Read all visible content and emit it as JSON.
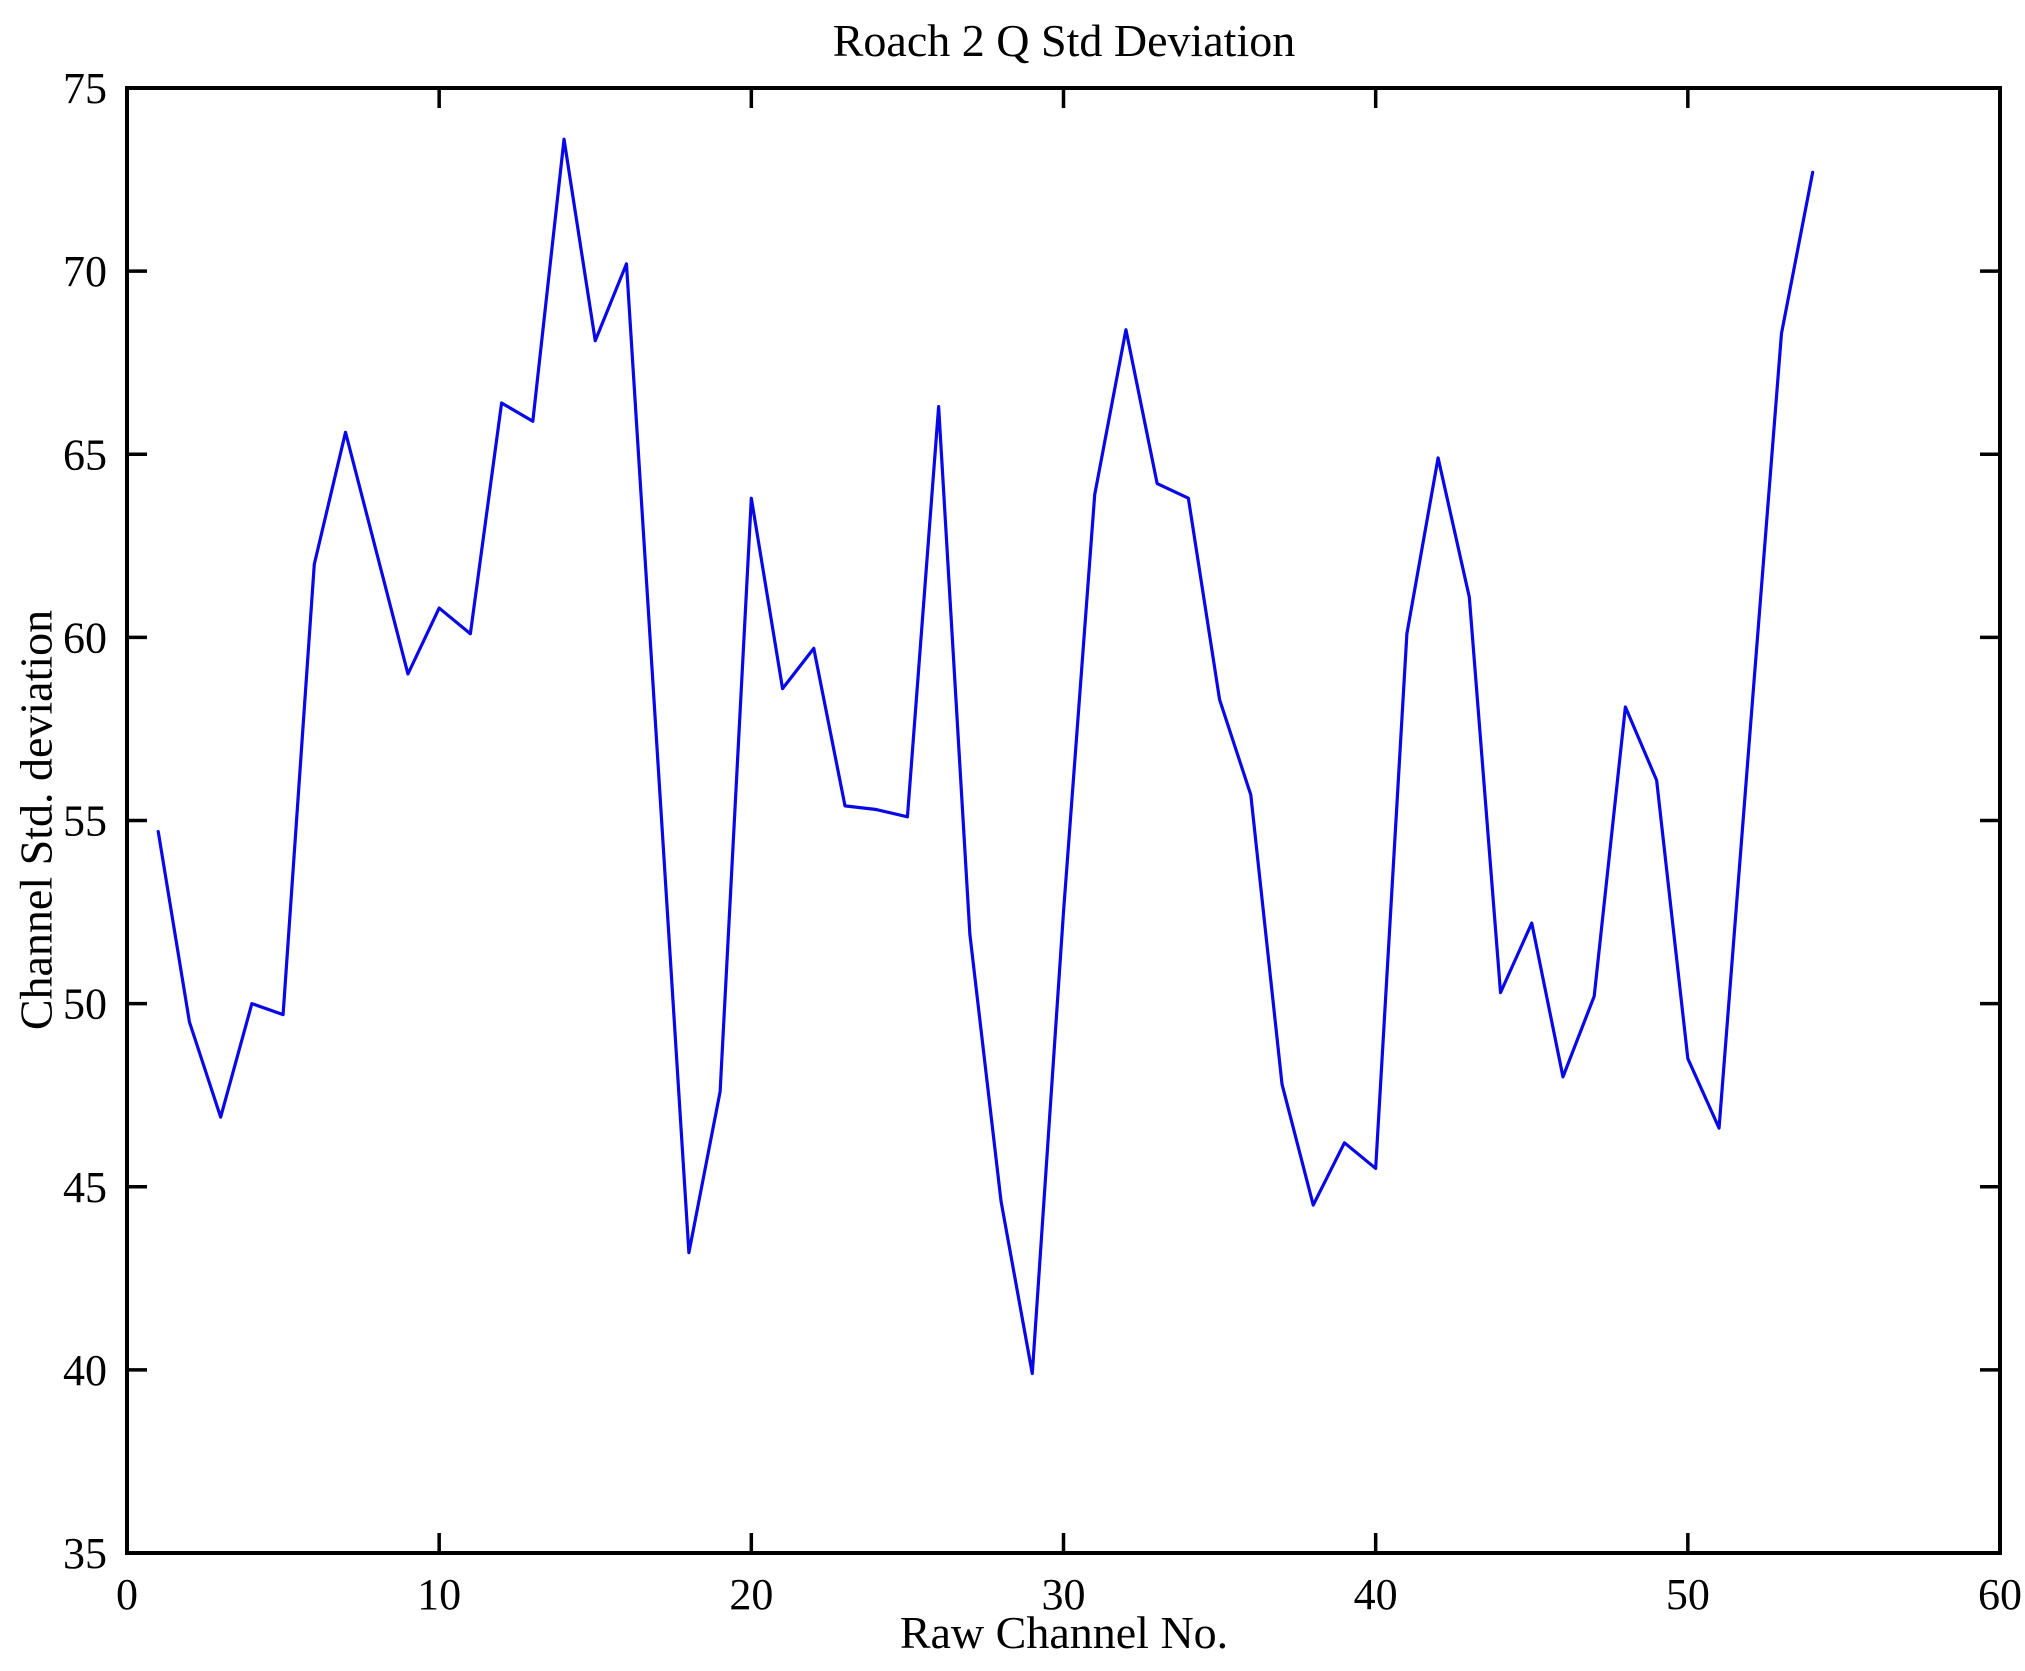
{
  "chart_data": {
    "type": "line",
    "title": "Roach 2 Q Std Deviation",
    "xlabel": "Raw Channel No.",
    "ylabel": "Channel Std. deviation",
    "xlim": [
      0,
      60
    ],
    "ylim": [
      35,
      75
    ],
    "xticks": [
      0,
      10,
      20,
      30,
      40,
      50,
      60
    ],
    "yticks": [
      35,
      40,
      45,
      50,
      55,
      60,
      65,
      70,
      75
    ],
    "grid": false,
    "legend": null,
    "line_color": "#0808e8",
    "axis_color": "#000000",
    "background_color": "#ffffff",
    "x": [
      1,
      2,
      3,
      4,
      5,
      6,
      7,
      8,
      9,
      10,
      11,
      12,
      13,
      14,
      15,
      16,
      17,
      18,
      19,
      20,
      21,
      22,
      23,
      24,
      25,
      26,
      27,
      28,
      29,
      30,
      31,
      32,
      33,
      34,
      35,
      36,
      37,
      38,
      39,
      40,
      41,
      42,
      43,
      44,
      45,
      46,
      47,
      48,
      49,
      50,
      51,
      52,
      53,
      54
    ],
    "values": [
      54.7,
      49.5,
      46.9,
      50.0,
      49.7,
      62.0,
      65.6,
      62.3,
      59.0,
      60.8,
      60.1,
      66.4,
      65.9,
      73.6,
      68.1,
      70.2,
      56.7,
      43.2,
      47.6,
      63.8,
      58.6,
      59.7,
      55.4,
      55.3,
      55.1,
      66.3,
      51.9,
      44.6,
      39.9,
      52.5,
      63.9,
      68.4,
      64.2,
      63.8,
      58.3,
      55.7,
      47.8,
      44.5,
      46.2,
      45.5,
      60.1,
      64.9,
      61.1,
      50.3,
      52.2,
      48.0,
      50.2,
      58.1,
      56.1,
      48.5,
      46.6,
      57.5,
      68.3,
      72.7
    ]
  }
}
